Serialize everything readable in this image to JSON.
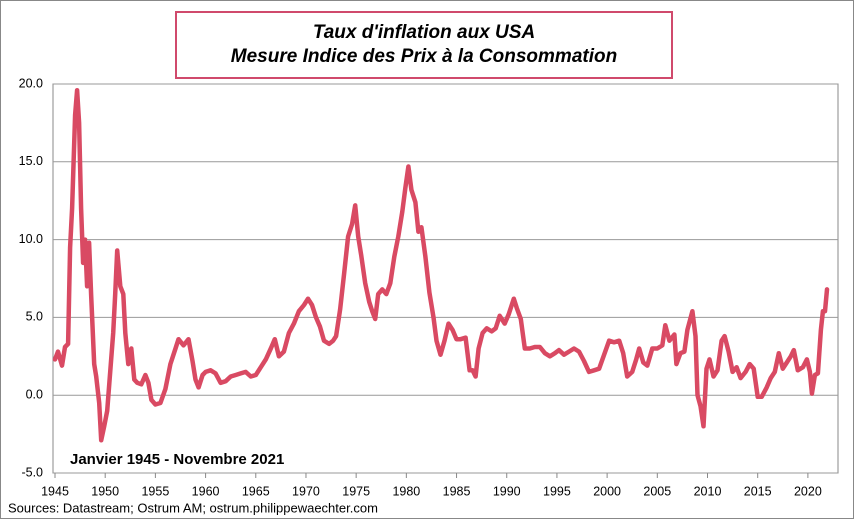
{
  "chart_data": {
    "type": "line",
    "title": "Taux d'inflation aux USA",
    "subtitle": "Mesure Indice des Prix à la Consommation",
    "annotation": "Janvier 1945 - Novembre 2021",
    "source": "Sources: Datastream; Ostrum AM; ostrum.philippewaechter.com",
    "color": "#d94a63",
    "xlim": [
      1944.8,
      2023
    ],
    "xticks": [
      1945,
      1950,
      1955,
      1960,
      1965,
      1970,
      1975,
      1980,
      1985,
      1990,
      1995,
      2000,
      2005,
      2010,
      2015,
      2020
    ],
    "ylim": [
      -5,
      20
    ],
    "yticks": [
      {
        "value": -5,
        "label": "-5.0"
      },
      {
        "value": 0,
        "label": "0.0"
      },
      {
        "value": 5,
        "label": "5.0"
      },
      {
        "value": 10,
        "label": "10.0"
      },
      {
        "value": 15,
        "label": "15.0"
      },
      {
        "value": 20,
        "label": "20.0"
      }
    ],
    "grid": true,
    "x": [
      1945.0,
      1945.3,
      1945.7,
      1946.0,
      1946.3,
      1946.5,
      1946.7,
      1947.0,
      1947.2,
      1947.4,
      1947.6,
      1947.8,
      1948.0,
      1948.2,
      1948.4,
      1948.6,
      1948.9,
      1949.1,
      1949.4,
      1949.6,
      1949.9,
      1950.2,
      1950.5,
      1950.8,
      1951.0,
      1951.2,
      1951.5,
      1951.8,
      1952.0,
      1952.3,
      1952.6,
      1952.9,
      1953.2,
      1953.6,
      1954.0,
      1954.3,
      1954.6,
      1955.0,
      1955.5,
      1956.0,
      1956.5,
      1957.0,
      1957.3,
      1957.8,
      1958.3,
      1958.7,
      1959.0,
      1959.3,
      1959.7,
      1960.0,
      1960.5,
      1961.0,
      1961.5,
      1962.0,
      1962.5,
      1963.0,
      1963.5,
      1964.0,
      1964.5,
      1965.0,
      1965.5,
      1966.0,
      1966.5,
      1966.9,
      1967.3,
      1967.8,
      1968.3,
      1968.8,
      1969.3,
      1969.8,
      1970.2,
      1970.6,
      1971.0,
      1971.4,
      1971.8,
      1972.3,
      1972.7,
      1973.0,
      1973.4,
      1973.8,
      1974.2,
      1974.6,
      1974.9,
      1975.2,
      1975.5,
      1975.9,
      1976.3,
      1976.6,
      1976.9,
      1977.2,
      1977.6,
      1978.0,
      1978.4,
      1978.8,
      1979.2,
      1979.6,
      1979.9,
      1980.2,
      1980.5,
      1980.9,
      1981.2,
      1981.5,
      1981.9,
      1982.3,
      1982.7,
      1983.0,
      1983.4,
      1983.8,
      1984.2,
      1984.6,
      1985.0,
      1985.4,
      1985.9,
      1986.3,
      1986.6,
      1986.9,
      1987.2,
      1987.6,
      1988.0,
      1988.5,
      1988.9,
      1989.3,
      1989.8,
      1990.2,
      1990.7,
      1991.0,
      1991.4,
      1991.8,
      1992.3,
      1992.8,
      1993.3,
      1993.8,
      1994.3,
      1994.8,
      1995.2,
      1995.7,
      1996.2,
      1996.7,
      1997.2,
      1997.7,
      1998.2,
      1998.7,
      1999.2,
      1999.7,
      2000.2,
      2000.7,
      2001.2,
      2001.6,
      2002.0,
      2002.5,
      2002.9,
      2003.2,
      2003.6,
      2004.0,
      2004.5,
      2005.0,
      2005.5,
      2005.8,
      2006.2,
      2006.7,
      2006.9,
      2007.3,
      2007.7,
      2008.0,
      2008.5,
      2008.8,
      2009.0,
      2009.3,
      2009.6,
      2009.9,
      2010.2,
      2010.6,
      2011.0,
      2011.4,
      2011.7,
      2012.1,
      2012.5,
      2012.9,
      2013.3,
      2013.8,
      2014.2,
      2014.6,
      2015.0,
      2015.4,
      2015.9,
      2016.3,
      2016.7,
      2017.1,
      2017.5,
      2017.9,
      2018.3,
      2018.6,
      2019.0,
      2019.5,
      2019.9,
      2020.2,
      2020.4,
      2020.7,
      2021.0,
      2021.3,
      2021.5,
      2021.7,
      2021.9
    ],
    "values": [
      2.3,
      2.8,
      1.9,
      3.1,
      3.3,
      9.5,
      12.0,
      18.0,
      19.6,
      17.5,
      12.0,
      8.5,
      10.0,
      7.0,
      9.8,
      6.5,
      2.0,
      1.2,
      -0.5,
      -2.9,
      -2.0,
      -1.0,
      1.5,
      4.0,
      6.5,
      9.3,
      7.0,
      6.5,
      4.0,
      2.0,
      3.0,
      1.0,
      0.8,
      0.7,
      1.3,
      0.8,
      -0.3,
      -0.6,
      -0.5,
      0.4,
      2.0,
      3.0,
      3.6,
      3.2,
      3.6,
      2.2,
      1.0,
      0.5,
      1.3,
      1.5,
      1.6,
      1.4,
      0.8,
      0.9,
      1.2,
      1.3,
      1.4,
      1.5,
      1.2,
      1.3,
      1.8,
      2.3,
      3.0,
      3.6,
      2.5,
      2.8,
      4.0,
      4.6,
      5.4,
      5.8,
      6.2,
      5.8,
      5.0,
      4.4,
      3.5,
      3.3,
      3.5,
      3.8,
      5.5,
      7.8,
      10.2,
      11.0,
      12.2,
      10.2,
      9.0,
      7.2,
      6.0,
      5.4,
      4.9,
      6.5,
      6.8,
      6.5,
      7.2,
      8.9,
      10.2,
      11.8,
      13.3,
      14.7,
      13.2,
      12.4,
      10.5,
      10.8,
      8.9,
      6.6,
      5.0,
      3.5,
      2.6,
      3.5,
      4.6,
      4.2,
      3.6,
      3.6,
      3.7,
      1.6,
      1.6,
      1.2,
      3.0,
      4.0,
      4.3,
      4.1,
      4.3,
      5.1,
      4.6,
      5.2,
      6.2,
      5.6,
      4.9,
      3.0,
      3.0,
      3.1,
      3.1,
      2.7,
      2.5,
      2.7,
      2.9,
      2.6,
      2.8,
      3.0,
      2.8,
      2.2,
      1.5,
      1.6,
      1.7,
      2.6,
      3.5,
      3.4,
      3.5,
      2.7,
      1.2,
      1.5,
      2.3,
      3.0,
      2.1,
      1.9,
      3.0,
      3.0,
      3.2,
      4.5,
      3.5,
      3.9,
      2.0,
      2.7,
      2.8,
      4.2,
      5.4,
      3.8,
      0.0,
      -0.7,
      -2.0,
      1.7,
      2.3,
      1.2,
      1.6,
      3.5,
      3.8,
      2.8,
      1.5,
      1.8,
      1.1,
      1.5,
      2.0,
      1.7,
      -0.1,
      -0.1,
      0.5,
      1.1,
      1.5,
      2.7,
      1.7,
      2.1,
      2.5,
      2.9,
      1.6,
      1.8,
      2.3,
      1.5,
      0.1,
      1.3,
      1.4,
      4.2,
      5.4,
      5.4,
      6.8
    ]
  }
}
